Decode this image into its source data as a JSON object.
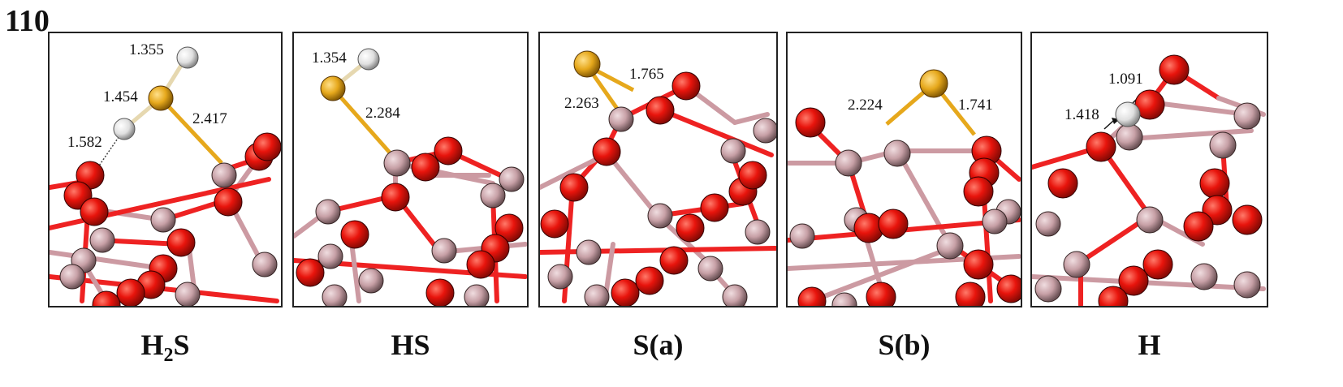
{
  "facet_label": "110",
  "panels": [
    {
      "id": "h2s",
      "caption_main": "H",
      "caption_sub": "2",
      "caption_tail": "S",
      "bond_lengths": [
        "1.355",
        "1.454",
        "1.582",
        "2.417"
      ]
    },
    {
      "id": "hs",
      "caption_main": "HS",
      "caption_sub": "",
      "caption_tail": "",
      "bond_lengths": [
        "1.354",
        "2.284"
      ]
    },
    {
      "id": "sa",
      "caption_main": "S(a)",
      "caption_sub": "",
      "caption_tail": "",
      "bond_lengths": [
        "1.765",
        "2.263"
      ]
    },
    {
      "id": "sb",
      "caption_main": "S(b)",
      "caption_sub": "",
      "caption_tail": "",
      "bond_lengths": [
        "2.224",
        "1.741"
      ]
    },
    {
      "id": "h",
      "caption_main": "H",
      "caption_sub": "",
      "caption_tail": "",
      "bond_lengths": [
        "1.091",
        "1.418"
      ]
    }
  ],
  "colors": {
    "oxygen": "#e8140c",
    "metal": "#c7a0a6",
    "sulfur": "#e6a81c",
    "hydrogen": "#e8e8e8",
    "bond_red": "#e22",
    "bond_pink": "#cc9aa2"
  }
}
